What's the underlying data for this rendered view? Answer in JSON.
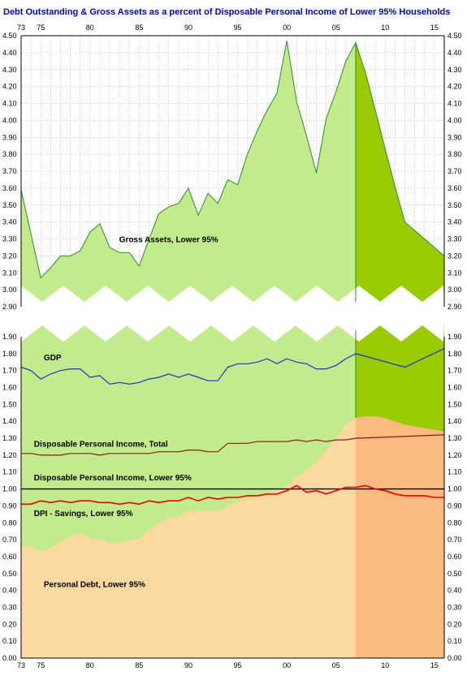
{
  "chart_data": {
    "type": "area",
    "title": "Debt Outstanding & Gross Assets as a percent of Disposable Personal Income of Lower 95% Households",
    "title_color": "#0000cc",
    "x_tick_labels": [
      "73",
      "75",
      "80",
      "85",
      "90",
      "95",
      "00",
      "05",
      "10",
      "15"
    ],
    "x_tick_years": [
      1973,
      1975,
      1980,
      1985,
      1990,
      1995,
      2000,
      2005,
      2010,
      2015
    ],
    "xlim": [
      1973,
      2016
    ],
    "projection_start": 2007,
    "upper_panel": {
      "ylim": [
        2.9,
        4.5
      ],
      "y_tick_labels": [
        "4.50",
        "4.40",
        "4.30",
        "4.20",
        "4.10",
        "4.00",
        "3.90",
        "3.80",
        "3.70",
        "3.60",
        "3.50",
        "3.40",
        "3.30",
        "3.20",
        "3.10",
        "3.00",
        "2.90"
      ],
      "y_ticks": [
        4.5,
        4.4,
        4.3,
        4.2,
        4.1,
        4.0,
        3.9,
        3.8,
        3.7,
        3.6,
        3.5,
        3.4,
        3.3,
        3.2,
        3.1,
        3.0,
        2.9
      ]
    },
    "lower_panel": {
      "ylim": [
        0.0,
        1.9
      ],
      "y_tick_labels": [
        "1.90",
        "1.80",
        "1.70",
        "1.60",
        "1.50",
        "1.40",
        "1.30",
        "1.20",
        "1.10",
        "1.00",
        "0.90",
        "0.80",
        "0.70",
        "0.60",
        "0.50",
        "0.40",
        "0.30",
        "0.20",
        "0.10",
        "0.00"
      ],
      "y_ticks": [
        1.9,
        1.8,
        1.7,
        1.6,
        1.5,
        1.4,
        1.3,
        1.2,
        1.1,
        1.0,
        0.9,
        0.8,
        0.7,
        0.6,
        0.5,
        0.4,
        0.3,
        0.2,
        0.1,
        0.0
      ]
    },
    "colors": {
      "assets_fill": "#c2ec8c",
      "assets_fill_projection": "#99cc00",
      "assets_line": "#2e8b2e",
      "debt_fill": "#fcd9a0",
      "debt_fill_projection": "#fbbb80",
      "gdp_line": "#1a33cc",
      "dpi_total_line": "#8b1a1a",
      "dpi_lower_line": "#000000",
      "savings_line": "#e60000",
      "grid": "#999999"
    },
    "series": [
      {
        "name": "Gross Assets, Lower 95%",
        "x": [
          1973,
          1974,
          1975,
          1976,
          1977,
          1978,
          1979,
          1980,
          1981,
          1982,
          1983,
          1984,
          1985,
          1986,
          1987,
          1988,
          1989,
          1990,
          1991,
          1992,
          1993,
          1994,
          1995,
          1996,
          1997,
          1998,
          1999,
          2000,
          2001,
          2002,
          2003,
          2004,
          2005,
          2006,
          2007,
          2008,
          2009,
          2010,
          2011,
          2012,
          2013,
          2014,
          2015,
          2016
        ],
        "values": [
          3.59,
          3.33,
          3.07,
          3.13,
          3.2,
          3.2,
          3.23,
          3.34,
          3.39,
          3.25,
          3.22,
          3.22,
          3.14,
          3.3,
          3.45,
          3.49,
          3.51,
          3.6,
          3.44,
          3.57,
          3.51,
          3.65,
          3.62,
          3.8,
          3.94,
          4.06,
          4.16,
          4.47,
          4.11,
          3.91,
          3.69,
          4.01,
          4.17,
          4.35,
          4.46,
          4.28,
          4.06,
          3.83,
          3.61,
          3.4,
          3.35,
          3.3,
          3.25,
          3.2
        ]
      },
      {
        "name": "GDP",
        "x": [
          1973,
          1974,
          1975,
          1976,
          1977,
          1978,
          1979,
          1980,
          1981,
          1982,
          1983,
          1984,
          1985,
          1986,
          1987,
          1988,
          1989,
          1990,
          1991,
          1992,
          1993,
          1994,
          1995,
          1996,
          1997,
          1998,
          1999,
          2000,
          2001,
          2002,
          2003,
          2004,
          2005,
          2006,
          2007,
          2012,
          2016
        ],
        "values": [
          1.72,
          1.7,
          1.65,
          1.68,
          1.7,
          1.71,
          1.71,
          1.66,
          1.67,
          1.62,
          1.63,
          1.62,
          1.63,
          1.65,
          1.66,
          1.68,
          1.66,
          1.68,
          1.66,
          1.64,
          1.64,
          1.72,
          1.74,
          1.74,
          1.75,
          1.77,
          1.74,
          1.77,
          1.75,
          1.74,
          1.71,
          1.71,
          1.73,
          1.77,
          1.8,
          1.72,
          1.83
        ]
      },
      {
        "name": "Disposable Personal Income, Total",
        "x": [
          1973,
          1974,
          1975,
          1976,
          1977,
          1978,
          1979,
          1980,
          1981,
          1982,
          1983,
          1984,
          1985,
          1986,
          1987,
          1988,
          1989,
          1990,
          1991,
          1992,
          1993,
          1994,
          1995,
          1996,
          1997,
          1998,
          1999,
          2000,
          2001,
          2002,
          2003,
          2004,
          2005,
          2006,
          2007,
          2016
        ],
        "values": [
          1.21,
          1.21,
          1.2,
          1.2,
          1.2,
          1.21,
          1.21,
          1.21,
          1.2,
          1.21,
          1.21,
          1.21,
          1.21,
          1.21,
          1.22,
          1.22,
          1.22,
          1.23,
          1.23,
          1.22,
          1.22,
          1.27,
          1.27,
          1.27,
          1.28,
          1.28,
          1.28,
          1.28,
          1.29,
          1.28,
          1.29,
          1.28,
          1.29,
          1.29,
          1.3,
          1.32
        ]
      },
      {
        "name": "Disposable Personal Income, Lower 95%",
        "x": [
          1973,
          2016
        ],
        "values": [
          1.0,
          1.0
        ]
      },
      {
        "name": "DPI - Savings, Lower 95%",
        "x": [
          1973,
          1974,
          1975,
          1976,
          1977,
          1978,
          1979,
          1980,
          1981,
          1982,
          1983,
          1984,
          1985,
          1986,
          1987,
          1988,
          1989,
          1990,
          1991,
          1992,
          1993,
          1994,
          1995,
          1996,
          1997,
          1998,
          1999,
          2000,
          2001,
          2002,
          2003,
          2004,
          2005,
          2006,
          2007,
          2008,
          2009,
          2010,
          2011,
          2012,
          2013,
          2014,
          2015,
          2016
        ],
        "values": [
          0.91,
          0.91,
          0.93,
          0.92,
          0.93,
          0.92,
          0.93,
          0.93,
          0.92,
          0.92,
          0.91,
          0.92,
          0.91,
          0.93,
          0.92,
          0.93,
          0.93,
          0.95,
          0.93,
          0.95,
          0.94,
          0.95,
          0.95,
          0.96,
          0.96,
          0.97,
          0.97,
          0.99,
          1.02,
          0.98,
          0.99,
          0.97,
          0.99,
          1.01,
          1.01,
          1.02,
          1.0,
          0.99,
          0.97,
          0.96,
          0.96,
          0.96,
          0.95,
          0.95
        ]
      },
      {
        "name": "Personal Debt, Lower 95%",
        "x": [
          1973,
          1974,
          1975,
          1976,
          1977,
          1978,
          1979,
          1980,
          1981,
          1982,
          1983,
          1984,
          1985,
          1986,
          1987,
          1988,
          1989,
          1990,
          1991,
          1992,
          1993,
          1994,
          1995,
          1996,
          1997,
          1998,
          1999,
          2000,
          2001,
          2002,
          2003,
          2004,
          2005,
          2006,
          2007,
          2008,
          2009,
          2010,
          2011,
          2012,
          2013,
          2014,
          2015,
          2016
        ],
        "values": [
          0.66,
          0.66,
          0.63,
          0.65,
          0.69,
          0.72,
          0.74,
          0.71,
          0.7,
          0.68,
          0.68,
          0.7,
          0.7,
          0.76,
          0.8,
          0.83,
          0.84,
          0.87,
          0.87,
          0.87,
          0.87,
          0.9,
          0.92,
          0.94,
          0.96,
          0.97,
          0.99,
          1.02,
          1.07,
          1.11,
          1.16,
          1.23,
          1.3,
          1.38,
          1.42,
          1.43,
          1.43,
          1.42,
          1.4,
          1.38,
          1.37,
          1.36,
          1.35,
          1.34
        ]
      }
    ],
    "annotations": [
      {
        "text": "Gross Assets, Lower 95%",
        "x": 1988,
        "y": 3.28,
        "panel": "upper"
      },
      {
        "text": "GDP",
        "x": 1975.3,
        "y": 1.76,
        "panel": "lower"
      },
      {
        "text": "Disposable Personal Income, Total",
        "x": 1974.3,
        "y": 1.25,
        "panel": "lower"
      },
      {
        "text": "Disposable Personal Income, Lower 95%",
        "x": 1974.3,
        "y": 1.05,
        "panel": "lower"
      },
      {
        "text": "DPI - Savings, Lower 95%",
        "x": 1974.3,
        "y": 0.84,
        "panel": "lower"
      },
      {
        "text": "Personal Debt, Lower 95%",
        "x": 1975.3,
        "y": 0.42,
        "panel": "lower"
      }
    ],
    "grid": true
  }
}
